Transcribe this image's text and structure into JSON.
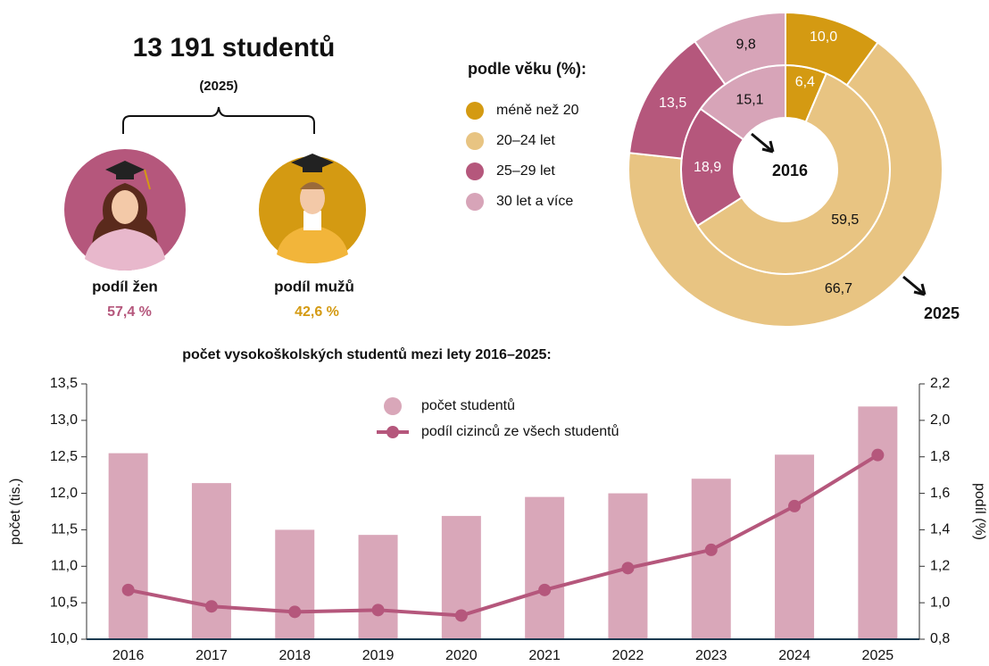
{
  "header": {
    "title": "13 191 studentů",
    "year": "(2025)",
    "women_label": "podíl žen",
    "women_value": "57,4 %",
    "men_label": "podíl mužů",
    "men_value": "42,6 %"
  },
  "chart_data": [
    {
      "type": "donut",
      "title": "podle věku (%):",
      "categories": [
        "méně než 20",
        "20–24 let",
        "25–29 let",
        "30 let a více"
      ],
      "colors": [
        "#d49a12",
        "#e8c482",
        "#b5577c",
        "#d7a4b8"
      ],
      "series": [
        {
          "name": "2016",
          "values": [
            6.4,
            59.5,
            18.9,
            15.1
          ],
          "value_labels": [
            "6,4",
            "59,5",
            "18,9",
            "15,1"
          ]
        },
        {
          "name": "2025",
          "values": [
            10.0,
            66.7,
            13.5,
            9.8
          ],
          "value_labels": [
            "10,0",
            "66,7",
            "13,5",
            "9,8"
          ]
        }
      ]
    },
    {
      "type": "combo",
      "title": "počet vysokoškolských studentů mezi lety 2016–2025:",
      "ylabel": "počet (tis.)",
      "y2label": "podíl (%)",
      "categories": [
        "2016",
        "2017",
        "2018",
        "2019",
        "2020",
        "2021",
        "2022",
        "2023",
        "2024",
        "2025"
      ],
      "series": [
        {
          "name": "počet studentů",
          "type": "bar",
          "color": "#d9a7b9",
          "values": [
            12.55,
            12.14,
            11.5,
            11.43,
            11.69,
            11.95,
            12.0,
            12.2,
            12.53,
            13.19
          ]
        },
        {
          "name": "podíl cizinců ze všech studentů",
          "type": "line",
          "axis": "y2",
          "color": "#b5577c",
          "values": [
            1.07,
            0.98,
            0.95,
            0.96,
            0.93,
            1.07,
            1.19,
            1.29,
            1.53,
            1.81
          ]
        }
      ],
      "ylim": [
        10,
        13.5
      ],
      "yticks": [
        {
          "value": 10,
          "label": "10,0"
        },
        {
          "value": 10.5,
          "label": "10,5"
        },
        {
          "value": 11,
          "label": "11,0"
        },
        {
          "value": 11.5,
          "label": "11,5"
        },
        {
          "value": 12,
          "label": "12,0"
        },
        {
          "value": 12.5,
          "label": "12,5"
        },
        {
          "value": 13,
          "label": "13,0"
        },
        {
          "value": 13.5,
          "label": "13,5"
        }
      ],
      "y2lim": [
        0.8,
        2.2
      ],
      "y2ticks": [
        {
          "value": 0.8,
          "label": "0,8"
        },
        {
          "value": 1,
          "label": "1,0"
        },
        {
          "value": 1.2,
          "label": "1,2"
        },
        {
          "value": 1.4,
          "label": "1,4"
        },
        {
          "value": 1.6,
          "label": "1,6"
        },
        {
          "value": 1.8,
          "label": "1,8"
        },
        {
          "value": 2,
          "label": "2,0"
        },
        {
          "value": 2.2,
          "label": "2,2"
        }
      ],
      "legend": "top"
    }
  ]
}
